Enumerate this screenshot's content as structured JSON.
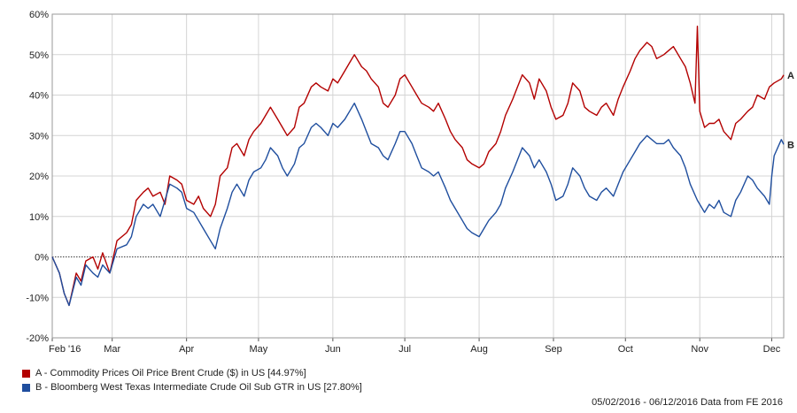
{
  "chart_data": {
    "type": "line",
    "title": "",
    "xlabel": "",
    "ylabel": "",
    "ylim": [
      -20,
      60
    ],
    "y_ticks": [
      -20,
      -10,
      0,
      10,
      20,
      30,
      40,
      50,
      60
    ],
    "y_tick_labels": [
      "-20%",
      "-10%",
      "0%",
      "10%",
      "20%",
      "30%",
      "40%",
      "50%",
      "60%"
    ],
    "x_range": [
      "2016-02-05",
      "2016-12-06"
    ],
    "x_ticks": [
      {
        "date": "2016-02-05",
        "label": "Feb '16"
      },
      {
        "date": "2016-03-01",
        "label": "Mar"
      },
      {
        "date": "2016-04-01",
        "label": "Apr"
      },
      {
        "date": "2016-05-01",
        "label": "May"
      },
      {
        "date": "2016-06-01",
        "label": "Jun"
      },
      {
        "date": "2016-07-01",
        "label": "Jul"
      },
      {
        "date": "2016-08-01",
        "label": "Aug"
      },
      {
        "date": "2016-09-01",
        "label": "Sep"
      },
      {
        "date": "2016-10-01",
        "label": "Oct"
      },
      {
        "date": "2016-11-01",
        "label": "Nov"
      },
      {
        "date": "2016-12-01",
        "label": "Dec"
      }
    ],
    "grid": true,
    "zero_line": "dotted",
    "legend_position": "bottom-left",
    "series": [
      {
        "name": "A - Commodity Prices Oil Price Brent Crude ($) in US [44.97%]",
        "end_label": "A",
        "color": "#b30000",
        "points": [
          [
            "2016-02-05",
            0
          ],
          [
            "2016-02-08",
            -4
          ],
          [
            "2016-02-10",
            -9
          ],
          [
            "2016-02-12",
            -12
          ],
          [
            "2016-02-15",
            -4
          ],
          [
            "2016-02-17",
            -6
          ],
          [
            "2016-02-19",
            -1
          ],
          [
            "2016-02-22",
            0
          ],
          [
            "2016-02-24",
            -3
          ],
          [
            "2016-02-26",
            1
          ],
          [
            "2016-02-29",
            -4
          ],
          [
            "2016-03-03",
            4
          ],
          [
            "2016-03-07",
            6
          ],
          [
            "2016-03-09",
            8
          ],
          [
            "2016-03-11",
            14
          ],
          [
            "2016-03-14",
            16
          ],
          [
            "2016-03-16",
            17
          ],
          [
            "2016-03-18",
            15
          ],
          [
            "2016-03-21",
            16
          ],
          [
            "2016-03-23",
            13
          ],
          [
            "2016-03-25",
            20
          ],
          [
            "2016-03-28",
            19
          ],
          [
            "2016-03-30",
            18
          ],
          [
            "2016-04-01",
            14
          ],
          [
            "2016-04-04",
            13
          ],
          [
            "2016-04-06",
            15
          ],
          [
            "2016-04-08",
            12
          ],
          [
            "2016-04-11",
            10
          ],
          [
            "2016-04-13",
            13
          ],
          [
            "2016-04-15",
            20
          ],
          [
            "2016-04-18",
            22
          ],
          [
            "2016-04-20",
            27
          ],
          [
            "2016-04-22",
            28
          ],
          [
            "2016-04-25",
            25
          ],
          [
            "2016-04-27",
            29
          ],
          [
            "2016-04-29",
            31
          ],
          [
            "2016-05-02",
            33
          ],
          [
            "2016-05-04",
            35
          ],
          [
            "2016-05-06",
            37
          ],
          [
            "2016-05-09",
            34
          ],
          [
            "2016-05-11",
            32
          ],
          [
            "2016-05-13",
            30
          ],
          [
            "2016-05-16",
            32
          ],
          [
            "2016-05-18",
            37
          ],
          [
            "2016-05-20",
            38
          ],
          [
            "2016-05-23",
            42
          ],
          [
            "2016-05-25",
            43
          ],
          [
            "2016-05-27",
            42
          ],
          [
            "2016-05-30",
            41
          ],
          [
            "2016-06-01",
            44
          ],
          [
            "2016-06-03",
            43
          ],
          [
            "2016-06-06",
            46
          ],
          [
            "2016-06-08",
            48
          ],
          [
            "2016-06-10",
            50
          ],
          [
            "2016-06-13",
            47
          ],
          [
            "2016-06-15",
            46
          ],
          [
            "2016-06-17",
            44
          ],
          [
            "2016-06-20",
            42
          ],
          [
            "2016-06-22",
            38
          ],
          [
            "2016-06-24",
            37
          ],
          [
            "2016-06-27",
            40
          ],
          [
            "2016-06-29",
            44
          ],
          [
            "2016-07-01",
            45
          ],
          [
            "2016-07-04",
            42
          ],
          [
            "2016-07-06",
            40
          ],
          [
            "2016-07-08",
            38
          ],
          [
            "2016-07-11",
            37
          ],
          [
            "2016-07-13",
            36
          ],
          [
            "2016-07-15",
            38
          ],
          [
            "2016-07-18",
            34
          ],
          [
            "2016-07-20",
            31
          ],
          [
            "2016-07-22",
            29
          ],
          [
            "2016-07-25",
            27
          ],
          [
            "2016-07-27",
            24
          ],
          [
            "2016-07-29",
            23
          ],
          [
            "2016-08-01",
            22
          ],
          [
            "2016-08-03",
            23
          ],
          [
            "2016-08-05",
            26
          ],
          [
            "2016-08-08",
            28
          ],
          [
            "2016-08-10",
            31
          ],
          [
            "2016-08-12",
            35
          ],
          [
            "2016-08-15",
            39
          ],
          [
            "2016-08-17",
            42
          ],
          [
            "2016-08-19",
            45
          ],
          [
            "2016-08-22",
            43
          ],
          [
            "2016-08-24",
            39
          ],
          [
            "2016-08-26",
            44
          ],
          [
            "2016-08-29",
            41
          ],
          [
            "2016-08-31",
            37
          ],
          [
            "2016-09-02",
            34
          ],
          [
            "2016-09-05",
            35
          ],
          [
            "2016-09-07",
            38
          ],
          [
            "2016-09-09",
            43
          ],
          [
            "2016-09-12",
            41
          ],
          [
            "2016-09-14",
            37
          ],
          [
            "2016-09-16",
            36
          ],
          [
            "2016-09-19",
            35
          ],
          [
            "2016-09-21",
            37
          ],
          [
            "2016-09-23",
            38
          ],
          [
            "2016-09-26",
            35
          ],
          [
            "2016-09-28",
            39
          ],
          [
            "2016-09-30",
            42
          ],
          [
            "2016-10-03",
            46
          ],
          [
            "2016-10-05",
            49
          ],
          [
            "2016-10-07",
            51
          ],
          [
            "2016-10-10",
            53
          ],
          [
            "2016-10-12",
            52
          ],
          [
            "2016-10-14",
            49
          ],
          [
            "2016-10-17",
            50
          ],
          [
            "2016-10-19",
            51
          ],
          [
            "2016-10-21",
            52
          ],
          [
            "2016-10-24",
            49
          ],
          [
            "2016-10-26",
            47
          ],
          [
            "2016-10-28",
            43
          ],
          [
            "2016-10-30",
            38
          ],
          [
            "2016-10-31",
            57
          ],
          [
            "2016-11-01",
            36
          ],
          [
            "2016-11-03",
            32
          ],
          [
            "2016-11-05",
            33
          ],
          [
            "2016-11-07",
            33
          ],
          [
            "2016-11-09",
            34
          ],
          [
            "2016-11-11",
            31
          ],
          [
            "2016-11-14",
            29
          ],
          [
            "2016-11-16",
            33
          ],
          [
            "2016-11-18",
            34
          ],
          [
            "2016-11-21",
            36
          ],
          [
            "2016-11-23",
            37
          ],
          [
            "2016-11-25",
            40
          ],
          [
            "2016-11-28",
            39
          ],
          [
            "2016-11-30",
            42
          ],
          [
            "2016-12-02",
            43
          ],
          [
            "2016-12-05",
            44
          ],
          [
            "2016-12-06",
            44.97
          ]
        ]
      },
      {
        "name": "B - Bloomberg West Texas Intermediate Crude Oil Sub GTR in US [27.80%]",
        "end_label": "B",
        "color": "#1f4e9e",
        "points": [
          [
            "2016-02-05",
            0
          ],
          [
            "2016-02-08",
            -4
          ],
          [
            "2016-02-10",
            -9
          ],
          [
            "2016-02-12",
            -12
          ],
          [
            "2016-02-15",
            -5
          ],
          [
            "2016-02-17",
            -7
          ],
          [
            "2016-02-19",
            -2
          ],
          [
            "2016-02-22",
            -4
          ],
          [
            "2016-02-24",
            -5
          ],
          [
            "2016-02-26",
            -2
          ],
          [
            "2016-02-29",
            -4
          ],
          [
            "2016-03-03",
            2
          ],
          [
            "2016-03-07",
            3
          ],
          [
            "2016-03-09",
            5
          ],
          [
            "2016-03-11",
            10
          ],
          [
            "2016-03-14",
            13
          ],
          [
            "2016-03-16",
            12
          ],
          [
            "2016-03-18",
            13
          ],
          [
            "2016-03-21",
            10
          ],
          [
            "2016-03-23",
            14
          ],
          [
            "2016-03-25",
            18
          ],
          [
            "2016-03-28",
            17
          ],
          [
            "2016-03-30",
            16
          ],
          [
            "2016-04-01",
            12
          ],
          [
            "2016-04-04",
            11
          ],
          [
            "2016-04-06",
            9
          ],
          [
            "2016-04-08",
            7
          ],
          [
            "2016-04-11",
            4
          ],
          [
            "2016-04-13",
            2
          ],
          [
            "2016-04-15",
            7
          ],
          [
            "2016-04-18",
            12
          ],
          [
            "2016-04-20",
            16
          ],
          [
            "2016-04-22",
            18
          ],
          [
            "2016-04-25",
            15
          ],
          [
            "2016-04-27",
            19
          ],
          [
            "2016-04-29",
            21
          ],
          [
            "2016-05-02",
            22
          ],
          [
            "2016-05-04",
            24
          ],
          [
            "2016-05-06",
            27
          ],
          [
            "2016-05-09",
            25
          ],
          [
            "2016-05-11",
            22
          ],
          [
            "2016-05-13",
            20
          ],
          [
            "2016-05-16",
            23
          ],
          [
            "2016-05-18",
            27
          ],
          [
            "2016-05-20",
            28
          ],
          [
            "2016-05-23",
            32
          ],
          [
            "2016-05-25",
            33
          ],
          [
            "2016-05-27",
            32
          ],
          [
            "2016-05-30",
            30
          ],
          [
            "2016-06-01",
            33
          ],
          [
            "2016-06-03",
            32
          ],
          [
            "2016-06-06",
            34
          ],
          [
            "2016-06-08",
            36
          ],
          [
            "2016-06-10",
            38
          ],
          [
            "2016-06-13",
            34
          ],
          [
            "2016-06-15",
            31
          ],
          [
            "2016-06-17",
            28
          ],
          [
            "2016-06-20",
            27
          ],
          [
            "2016-06-22",
            25
          ],
          [
            "2016-06-24",
            24
          ],
          [
            "2016-06-27",
            28
          ],
          [
            "2016-06-29",
            31
          ],
          [
            "2016-07-01",
            31
          ],
          [
            "2016-07-04",
            28
          ],
          [
            "2016-07-06",
            25
          ],
          [
            "2016-07-08",
            22
          ],
          [
            "2016-07-11",
            21
          ],
          [
            "2016-07-13",
            20
          ],
          [
            "2016-07-15",
            21
          ],
          [
            "2016-07-18",
            17
          ],
          [
            "2016-07-20",
            14
          ],
          [
            "2016-07-22",
            12
          ],
          [
            "2016-07-25",
            9
          ],
          [
            "2016-07-27",
            7
          ],
          [
            "2016-07-29",
            6
          ],
          [
            "2016-08-01",
            5
          ],
          [
            "2016-08-03",
            7
          ],
          [
            "2016-08-05",
            9
          ],
          [
            "2016-08-08",
            11
          ],
          [
            "2016-08-10",
            13
          ],
          [
            "2016-08-12",
            17
          ],
          [
            "2016-08-15",
            21
          ],
          [
            "2016-08-17",
            24
          ],
          [
            "2016-08-19",
            27
          ],
          [
            "2016-08-22",
            25
          ],
          [
            "2016-08-24",
            22
          ],
          [
            "2016-08-26",
            24
          ],
          [
            "2016-08-29",
            21
          ],
          [
            "2016-08-31",
            18
          ],
          [
            "2016-09-02",
            14
          ],
          [
            "2016-09-05",
            15
          ],
          [
            "2016-09-07",
            18
          ],
          [
            "2016-09-09",
            22
          ],
          [
            "2016-09-12",
            20
          ],
          [
            "2016-09-14",
            17
          ],
          [
            "2016-09-16",
            15
          ],
          [
            "2016-09-19",
            14
          ],
          [
            "2016-09-21",
            16
          ],
          [
            "2016-09-23",
            17
          ],
          [
            "2016-09-26",
            15
          ],
          [
            "2016-09-28",
            18
          ],
          [
            "2016-09-30",
            21
          ],
          [
            "2016-10-03",
            24
          ],
          [
            "2016-10-05",
            26
          ],
          [
            "2016-10-07",
            28
          ],
          [
            "2016-10-10",
            30
          ],
          [
            "2016-10-12",
            29
          ],
          [
            "2016-10-14",
            28
          ],
          [
            "2016-10-17",
            28
          ],
          [
            "2016-10-19",
            29
          ],
          [
            "2016-10-21",
            27
          ],
          [
            "2016-10-24",
            25
          ],
          [
            "2016-10-26",
            22
          ],
          [
            "2016-10-28",
            18
          ],
          [
            "2016-10-31",
            14
          ],
          [
            "2016-11-01",
            13
          ],
          [
            "2016-11-03",
            11
          ],
          [
            "2016-11-05",
            13
          ],
          [
            "2016-11-07",
            12
          ],
          [
            "2016-11-09",
            14
          ],
          [
            "2016-11-11",
            11
          ],
          [
            "2016-11-14",
            10
          ],
          [
            "2016-11-16",
            14
          ],
          [
            "2016-11-18",
            16
          ],
          [
            "2016-11-21",
            20
          ],
          [
            "2016-11-23",
            19
          ],
          [
            "2016-11-25",
            17
          ],
          [
            "2016-11-28",
            15
          ],
          [
            "2016-11-30",
            13
          ],
          [
            "2016-12-01",
            20
          ],
          [
            "2016-12-02",
            25
          ],
          [
            "2016-12-05",
            29
          ],
          [
            "2016-12-06",
            27.8
          ]
        ]
      }
    ],
    "footer": "05/02/2016 - 06/12/2016 Data from FE 2016"
  }
}
